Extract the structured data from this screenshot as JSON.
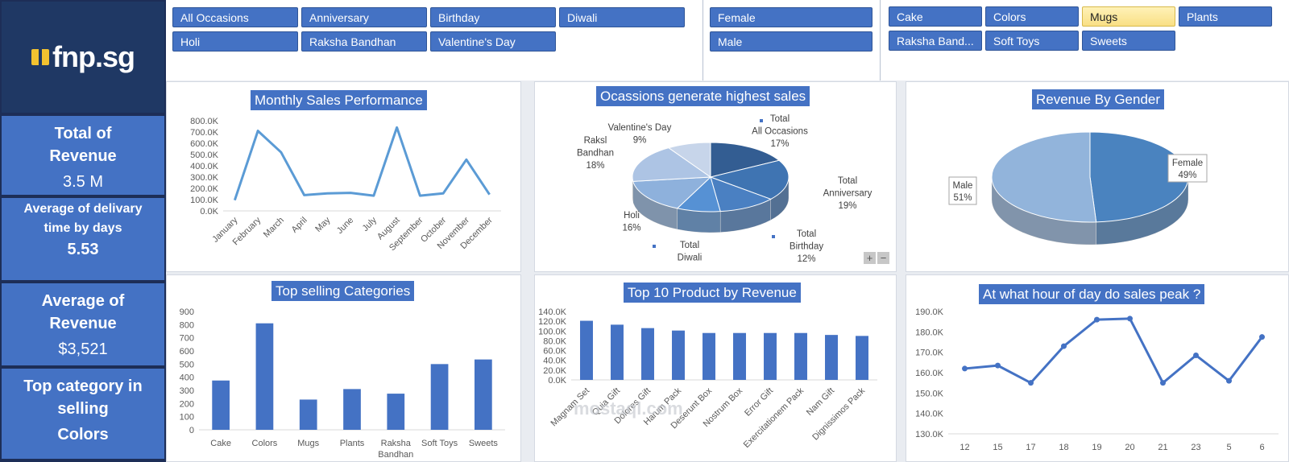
{
  "logo": {
    "text": "fnp.sg"
  },
  "kpis": [
    {
      "label": "Total of Revenue",
      "value": "3.5 M"
    },
    {
      "label": "Average of delivary time by days",
      "value": "5.53"
    },
    {
      "label": "Average of Revenue",
      "value": "$3,521"
    },
    {
      "label": "Top category in selling",
      "value": "Colors"
    }
  ],
  "slicers": {
    "occasions": [
      "All Occasions",
      "Anniversary",
      "Birthday",
      "Diwali",
      "Holi",
      "Raksha Bandhan",
      "Valentine's Day"
    ],
    "gender": [
      "Female",
      "Male"
    ],
    "categories": [
      "Cake",
      "Colors",
      "Mugs",
      "Plants",
      "Raksha Band...",
      "Soft Toys",
      "Sweets"
    ],
    "selected_category": "Mugs"
  },
  "colors": {
    "accent": "#4472c4",
    "navy": "#1f3864",
    "line": "#5b9bd5"
  },
  "chart_data": [
    {
      "type": "line",
      "title": "Monthly Sales Performance",
      "categories": [
        "January",
        "February",
        "March",
        "April",
        "May",
        "June",
        "July",
        "August",
        "September",
        "October",
        "November",
        "December"
      ],
      "values": [
        95000,
        710000,
        520000,
        140000,
        155000,
        160000,
        135000,
        740000,
        135000,
        155000,
        455000,
        145000
      ],
      "ylim": [
        0,
        800000
      ],
      "yticks": [
        "0.0K",
        "100.0K",
        "200.0K",
        "300.0K",
        "400.0K",
        "500.0K",
        "600.0K",
        "700.0K",
        "800.0K"
      ]
    },
    {
      "type": "pie",
      "title": "Ocassions generate highest sales",
      "slices": [
        {
          "label": "Total All Occasions",
          "pct": "17%",
          "value": 17
        },
        {
          "label": "Total Anniversary",
          "pct": "19%",
          "value": 19
        },
        {
          "label": "Total Birthday",
          "pct": "12%",
          "value": 12
        },
        {
          "label": "Total Diwali",
          "pct": "",
          "value": 9
        },
        {
          "label": "Holi",
          "pct": "16%",
          "value": 16
        },
        {
          "label": "Raksl Bandhan",
          "pct": "18%",
          "value": 18
        },
        {
          "label": "Valentine's Day",
          "pct": "9%",
          "value": 9
        }
      ]
    },
    {
      "type": "pie",
      "title": "Revenue By Gender",
      "slices": [
        {
          "label": "Female",
          "pct": "49%",
          "value": 49
        },
        {
          "label": "Male",
          "pct": "51%",
          "value": 51
        }
      ]
    },
    {
      "type": "bar",
      "title": "Top selling Categories",
      "categories": [
        "Cake",
        "Colors",
        "Mugs",
        "Plants",
        "Raksha Bandhan",
        "Soft Toys",
        "Sweets"
      ],
      "values": [
        375,
        810,
        230,
        310,
        275,
        500,
        535
      ],
      "ylim": [
        0,
        900
      ],
      "yticks": [
        "0",
        "100",
        "200",
        "300",
        "400",
        "500",
        "600",
        "700",
        "800",
        "900"
      ]
    },
    {
      "type": "bar",
      "title": "Top 10 Product by Revenue",
      "categories": [
        "Magnam Set",
        "Quia Gift",
        "Dolores Gift",
        "Harum Pack",
        "Deserunt Box",
        "Nostrum Box",
        "Error Gift",
        "Exercitationem Pack",
        "Nam Gift",
        "Dignissimos Pack"
      ],
      "values": [
        121000,
        113000,
        106000,
        101000,
        96000,
        96000,
        96000,
        96000,
        92000,
        90000
      ],
      "ylim": [
        0,
        140000
      ],
      "yticks": [
        "0.0K",
        "20.0K",
        "40.0K",
        "60.0K",
        "80.0K",
        "100.0K",
        "120.0K",
        "140.0K"
      ]
    },
    {
      "type": "line",
      "title": "At what hour of day do sales peak ?",
      "categories": [
        "12",
        "15",
        "17",
        "18",
        "19",
        "20",
        "21",
        "23",
        "5",
        "6"
      ],
      "values": [
        162000,
        163500,
        155000,
        173000,
        186000,
        186500,
        155000,
        168500,
        156000,
        177500
      ],
      "ylim": [
        130000,
        190000
      ],
      "yticks": [
        "130.0K",
        "140.0K",
        "150.0K",
        "160.0K",
        "170.0K",
        "180.0K",
        "190.0K"
      ]
    }
  ],
  "watermark": "mostaql.com"
}
